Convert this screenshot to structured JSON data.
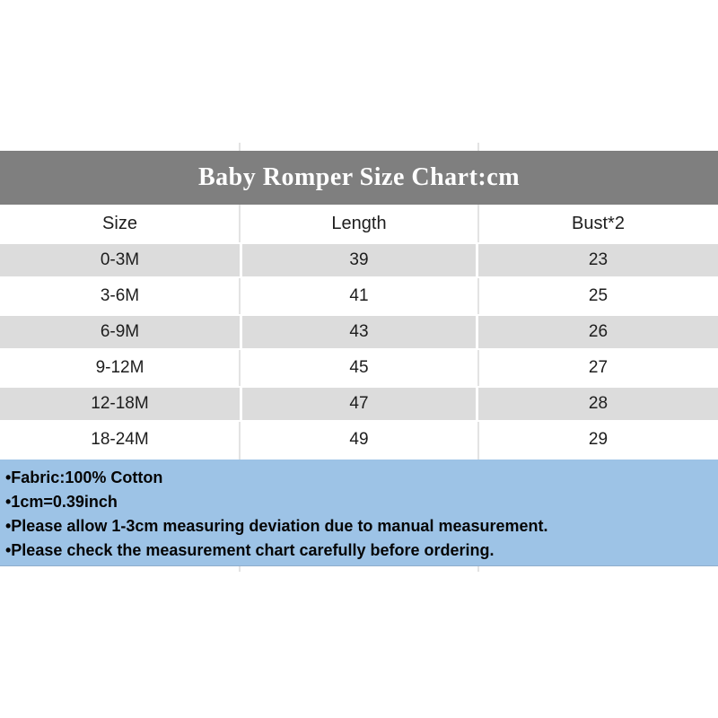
{
  "title_bar": {
    "text": "Baby Romper Size Chart:cm",
    "background": "#7f7f7f",
    "text_color": "#ffffff"
  },
  "chart_data": {
    "type": "table",
    "title": "Baby Romper Size Chart:cm",
    "unit": "cm",
    "columns": [
      "Size",
      "Length",
      "Bust*2"
    ],
    "rows": [
      [
        "0-3M",
        "39",
        "23"
      ],
      [
        "3-6M",
        "41",
        "25"
      ],
      [
        "6-9M",
        "43",
        "26"
      ],
      [
        "9-12M",
        "45",
        "27"
      ],
      [
        "12-18M",
        "47",
        "28"
      ],
      [
        "18-24M",
        "49",
        "29"
      ]
    ],
    "row_stripe_colors": [
      "#dcdcdc",
      "#ffffff"
    ],
    "legend_position": "none",
    "grid": "column-dividers"
  },
  "notes": {
    "background": "#9dc3e6",
    "lines": [
      "•Fabric:100% Cotton",
      "•1cm=0.39inch",
      "•Please allow 1-3cm measuring deviation due to manual measurement.",
      "•Please check the measurement chart carefully before ordering."
    ]
  }
}
